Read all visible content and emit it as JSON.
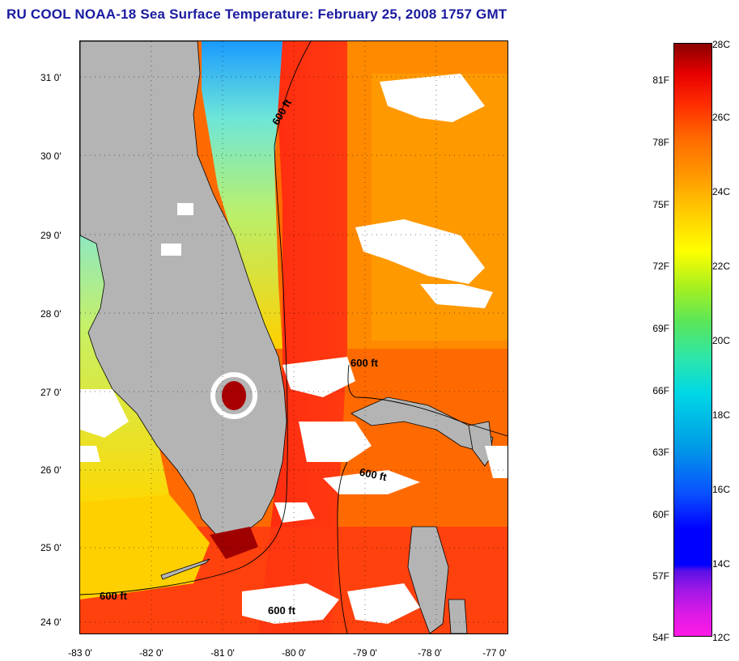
{
  "title": "RU COOL  NOAA-18  Sea Surface Temperature:  February 25, 2008 1757 GMT",
  "map": {
    "latitude_labels": [
      "31 0'",
      "30 0'",
      "29 0'",
      "28 0'",
      "27 0'",
      "26 0'",
      "25 0'",
      "24 0'"
    ],
    "longitude_labels": [
      "-83 0'",
      "-82 0'",
      "-81 0'",
      "-80 0'",
      "-79 0'",
      "-78 0'",
      "-77 0'"
    ],
    "depth_contour_labels": [
      "600 ft",
      "600 ft",
      "600 ft",
      "600 ft",
      "600 ft"
    ],
    "colors": {
      "land": "#b4b4b4",
      "cloud": "#ffffff",
      "warm_gulf_stream": "#ff2a10",
      "ocean_warm": "#ff6a00",
      "ocean_mid": "#ffb000",
      "coastal_cool": "#7ee6c8",
      "coastal_cold": "#1aa0ff"
    }
  },
  "colorbar": {
    "fahrenheit_labels": [
      "81F",
      "78F",
      "75F",
      "72F",
      "69F",
      "66F",
      "63F",
      "60F",
      "57F",
      "54F"
    ],
    "celsius_labels": [
      "28C",
      "26C",
      "24C",
      "22C",
      "20C",
      "18C",
      "16C",
      "14C",
      "12C"
    ],
    "range_c": [
      12,
      28
    ],
    "range_f": [
      54,
      82.4
    ]
  }
}
